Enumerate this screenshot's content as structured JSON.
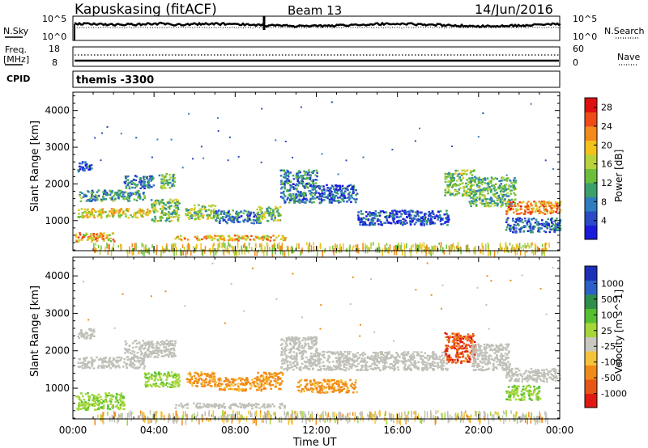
{
  "header": {
    "station": "Kapuskasing (fitACF)",
    "beam": "Beam 13",
    "date": "14/Jun/2016"
  },
  "noise_panel": {
    "left_label": "N.Sky",
    "right_label": "N.Search",
    "left_ticks": [
      "10^5",
      "10^0"
    ],
    "right_ticks": [
      "10^5",
      "10^0"
    ]
  },
  "freq_panel": {
    "left_label_1": "Freq.",
    "left_label_2": "[MHz]",
    "right_label": "Nave",
    "left_ticks": [
      "18",
      "8"
    ],
    "right_ticks": [
      "60",
      "0"
    ]
  },
  "cpid": {
    "label": "CPID",
    "value": "themis -3300"
  },
  "colors": {
    "power_scale": [
      "#1a1adb",
      "#2a4ac6",
      "#2e7dbf",
      "#3ba06a",
      "#6cbf3a",
      "#b8d23a",
      "#f2c21a",
      "#f38a1a",
      "#ee4b16",
      "#e01010"
    ],
    "velocity_scale": [
      "#1b2fb8",
      "#2b60c8",
      "#2e8f4a",
      "#55c030",
      "#a6d63a",
      "#c8c8be",
      "#f5c33a",
      "#f08a1a",
      "#e85616",
      "#e01a12"
    ],
    "ground_scatter": "#c0c0b8"
  },
  "chart_data": [
    {
      "type": "heatmap",
      "panel": "power",
      "xlabel": "Time UT",
      "ylabel": "Slant Range [km]",
      "xlim": [
        0,
        24
      ],
      "ylim": [
        180,
        4500
      ],
      "x_ticks": [
        "00:00",
        "04:00",
        "08:00",
        "12:00",
        "16:00",
        "20:00",
        "00:00"
      ],
      "y_ticks": [
        1000,
        2000,
        3000,
        4000
      ],
      "colorbar": {
        "label": "Power [dB]",
        "ticks": [
          4,
          8,
          12,
          16,
          20,
          24,
          28
        ],
        "range": [
          0,
          30
        ]
      },
      "regions": [
        {
          "t0": 0.1,
          "t1": 2.0,
          "r0": 450,
          "r1": 700,
          "value": 20
        },
        {
          "t0": 0.2,
          "t1": 3.8,
          "r0": 1100,
          "r1": 1350,
          "value": 18
        },
        {
          "t0": 0.2,
          "t1": 3.5,
          "r0": 1550,
          "r1": 1850,
          "value": 10
        },
        {
          "t0": 0.2,
          "t1": 0.9,
          "r0": 2350,
          "r1": 2650,
          "value": 6
        },
        {
          "t0": 2.5,
          "t1": 4.0,
          "r0": 1900,
          "r1": 2250,
          "value": 8
        },
        {
          "t0": 3.8,
          "t1": 5.2,
          "r0": 1000,
          "r1": 1600,
          "value": 14
        },
        {
          "t0": 4.2,
          "t1": 5.0,
          "r0": 1900,
          "r1": 2300,
          "value": 12
        },
        {
          "t0": 5.5,
          "t1": 7.0,
          "r0": 1050,
          "r1": 1450,
          "value": 14
        },
        {
          "t0": 5.0,
          "t1": 10.5,
          "r0": 480,
          "r1": 620,
          "value": 20
        },
        {
          "t0": 7.0,
          "t1": 9.3,
          "r0": 950,
          "r1": 1300,
          "value": 8
        },
        {
          "t0": 9.0,
          "t1": 10.2,
          "r0": 1000,
          "r1": 1400,
          "value": 14
        },
        {
          "t0": 10.2,
          "t1": 12.0,
          "r0": 1500,
          "r1": 2400,
          "value": 8
        },
        {
          "t0": 12.0,
          "t1": 14.0,
          "r0": 1500,
          "r1": 2000,
          "value": 6
        },
        {
          "t0": 14.0,
          "t1": 18.5,
          "r0": 900,
          "r1": 1300,
          "value": 5
        },
        {
          "t0": 18.3,
          "t1": 19.8,
          "r0": 1700,
          "r1": 2400,
          "value": 14
        },
        {
          "t0": 19.5,
          "t1": 21.8,
          "r0": 1400,
          "r1": 2200,
          "value": 12
        },
        {
          "t0": 21.3,
          "t1": 24.0,
          "r0": 1200,
          "r1": 1550,
          "value": 22
        },
        {
          "t0": 21.3,
          "t1": 24.0,
          "r0": 700,
          "r1": 1100,
          "value": 6
        },
        {
          "t0": 1.0,
          "t1": 23.5,
          "r0": 180,
          "r1": 420,
          "value": 18
        }
      ]
    },
    {
      "type": "heatmap",
      "panel": "velocity",
      "xlabel": "Time UT",
      "ylabel": "Slant Range [km]",
      "xlim": [
        0,
        24
      ],
      "ylim": [
        180,
        4500
      ],
      "x_ticks": [
        "00:00",
        "04:00",
        "08:00",
        "12:00",
        "16:00",
        "20:00",
        "00:00"
      ],
      "y_ticks": [
        1000,
        2000,
        3000,
        4000
      ],
      "colorbar": {
        "label": "Velocity [m s^-1]",
        "ticks": [
          "1000",
          "500",
          "100",
          "25",
          "-25",
          "-100",
          "-500",
          "-1000"
        ]
      },
      "regions": [
        {
          "t0": 0.1,
          "t1": 2.5,
          "r0": 450,
          "r1": 900,
          "value": 100,
          "cls": "gs-green"
        },
        {
          "t0": 0.2,
          "t1": 3.5,
          "r0": 1550,
          "r1": 1850,
          "value": 0,
          "cls": "ground"
        },
        {
          "t0": 0.2,
          "t1": 1.0,
          "r0": 2350,
          "r1": 2650,
          "value": 0,
          "cls": "ground"
        },
        {
          "t0": 2.5,
          "t1": 5.0,
          "r0": 1850,
          "r1": 2300,
          "value": 0,
          "cls": "ground"
        },
        {
          "t0": 3.5,
          "t1": 5.3,
          "r0": 1050,
          "r1": 1450,
          "value": 200,
          "cls": "green"
        },
        {
          "t0": 5.5,
          "t1": 7.0,
          "r0": 1050,
          "r1": 1450,
          "value": -200,
          "cls": "orange"
        },
        {
          "t0": 5.0,
          "t1": 10.5,
          "r0": 480,
          "r1": 620,
          "value": 0,
          "cls": "ground"
        },
        {
          "t0": 7.0,
          "t1": 9.3,
          "r0": 950,
          "r1": 1300,
          "value": -150,
          "cls": "orange"
        },
        {
          "t0": 9.0,
          "t1": 10.3,
          "r0": 1000,
          "r1": 1450,
          "value": -300,
          "cls": "orange"
        },
        {
          "t0": 10.2,
          "t1": 12.0,
          "r0": 1500,
          "r1": 2400,
          "value": 0,
          "cls": "ground"
        },
        {
          "t0": 11.0,
          "t1": 14.0,
          "r0": 900,
          "r1": 1250,
          "value": -200,
          "cls": "orange"
        },
        {
          "t0": 12.0,
          "t1": 18.5,
          "r0": 1500,
          "r1": 2000,
          "value": 0,
          "cls": "ground"
        },
        {
          "t0": 18.3,
          "t1": 19.8,
          "r0": 1700,
          "r1": 2500,
          "value": -600,
          "cls": "red"
        },
        {
          "t0": 19.6,
          "t1": 21.5,
          "r0": 1500,
          "r1": 2200,
          "value": 0,
          "cls": "ground"
        },
        {
          "t0": 21.3,
          "t1": 24.0,
          "r0": 1200,
          "r1": 1550,
          "value": 0,
          "cls": "ground"
        },
        {
          "t0": 21.3,
          "t1": 23.0,
          "r0": 700,
          "r1": 1100,
          "value": 100,
          "cls": "green"
        },
        {
          "t0": 1.0,
          "t1": 23.5,
          "r0": 180,
          "r1": 420,
          "value": -50,
          "cls": "sparse"
        }
      ]
    }
  ]
}
